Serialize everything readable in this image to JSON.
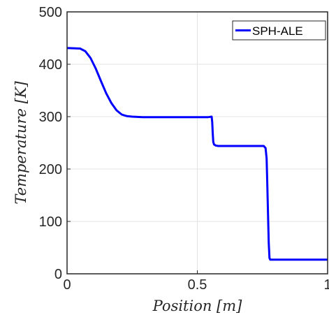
{
  "chart_data": {
    "type": "line",
    "title": "",
    "xlabel": "Position [m]",
    "ylabel": "Temperature [K]",
    "xlim": [
      0,
      1
    ],
    "ylim": [
      0,
      500
    ],
    "xticks": [
      0,
      0.5,
      1
    ],
    "xtick_labels": [
      "0",
      "0.5",
      "1"
    ],
    "yticks": [
      0,
      100,
      200,
      300,
      400,
      500
    ],
    "ytick_labels": [
      "0",
      "100",
      "200",
      "300",
      "400",
      "500"
    ],
    "grid": true,
    "legend_position": "top-right",
    "series": [
      {
        "name": "SPH-ALE",
        "color": "#0000ff",
        "x": [
          0,
          0.05,
          0.07,
          0.09,
          0.11,
          0.13,
          0.15,
          0.17,
          0.19,
          0.21,
          0.23,
          0.25,
          0.27,
          0.29,
          0.31,
          0.35,
          0.45,
          0.54,
          0.555,
          0.557,
          0.559,
          0.561,
          0.564,
          0.57,
          0.58,
          0.6,
          0.65,
          0.7,
          0.755,
          0.762,
          0.766,
          0.768,
          0.771,
          0.774,
          0.777,
          0.78,
          0.785,
          0.8,
          0.9,
          1.0
        ],
        "y": [
          431,
          430,
          425,
          412,
          392,
          368,
          345,
          326,
          312,
          304,
          301,
          300,
          299.5,
          299,
          299,
          299,
          299,
          299,
          300,
          290,
          270,
          252,
          247,
          245,
          244,
          244,
          244,
          244,
          244,
          240,
          220,
          180,
          120,
          60,
          30,
          27,
          27,
          27,
          27,
          27
        ]
      }
    ]
  }
}
